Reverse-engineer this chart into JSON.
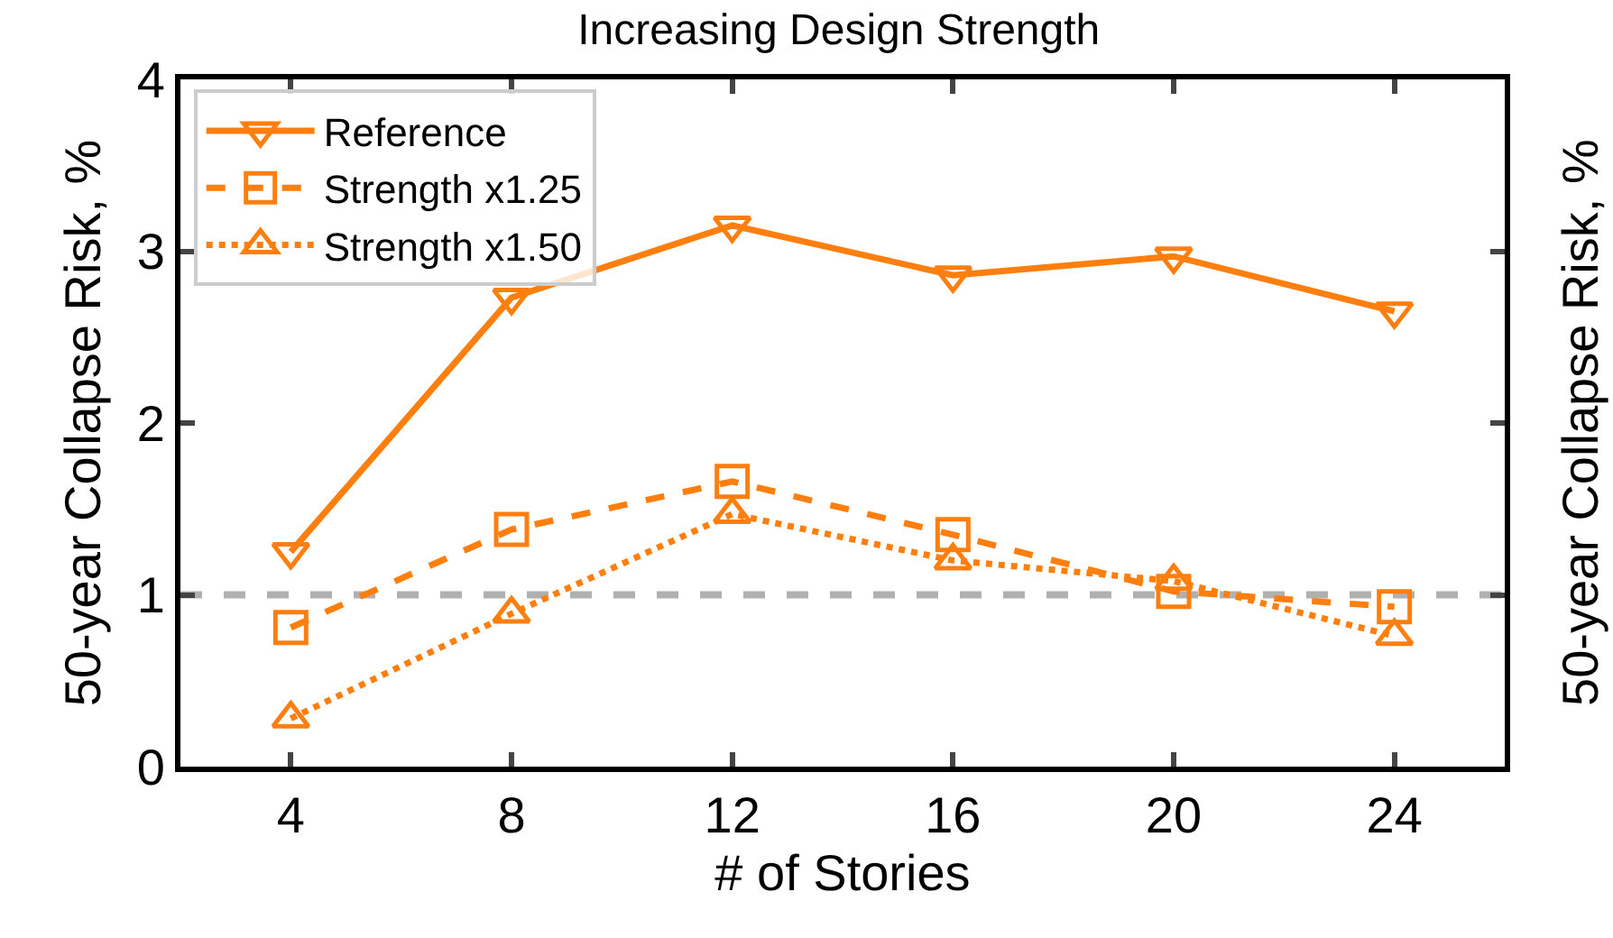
{
  "chart_data": {
    "type": "line",
    "title": "Increasing Design Strength",
    "xlabel": "# of Stories",
    "ylabel": "50-year Collapse Risk, %",
    "y2label": "50-year Collapse Risk, %",
    "x": [
      4,
      8,
      12,
      16,
      20,
      24
    ],
    "series": [
      {
        "name": "Reference",
        "color": "#ff7f0e",
        "marker": "triangle-down",
        "line_style": "solid",
        "values": [
          1.25,
          2.73,
          3.15,
          2.86,
          2.97,
          2.65
        ]
      },
      {
        "name": "Strength x1.25",
        "color": "#ff7f0e",
        "marker": "square",
        "line_style": "dashed",
        "values": [
          0.81,
          1.38,
          1.66,
          1.35,
          1.02,
          0.93
        ]
      },
      {
        "name": "Strength x1.50",
        "color": "#ff7f0e",
        "marker": "triangle",
        "line_style": "dotted",
        "values": [
          0.28,
          0.89,
          1.47,
          1.2,
          1.08,
          0.76
        ]
      }
    ],
    "xlim": [
      2,
      26
    ],
    "xticks": [
      4,
      8,
      12,
      16,
      20,
      24
    ],
    "ylim": [
      0,
      4
    ],
    "yticks": [
      0,
      1,
      2,
      3,
      4
    ],
    "ref_lines": [
      {
        "axis": "y",
        "value": 1,
        "color": "#b0b0b0",
        "line_style": "dashed"
      }
    ],
    "grid": false,
    "legend": "top left"
  }
}
